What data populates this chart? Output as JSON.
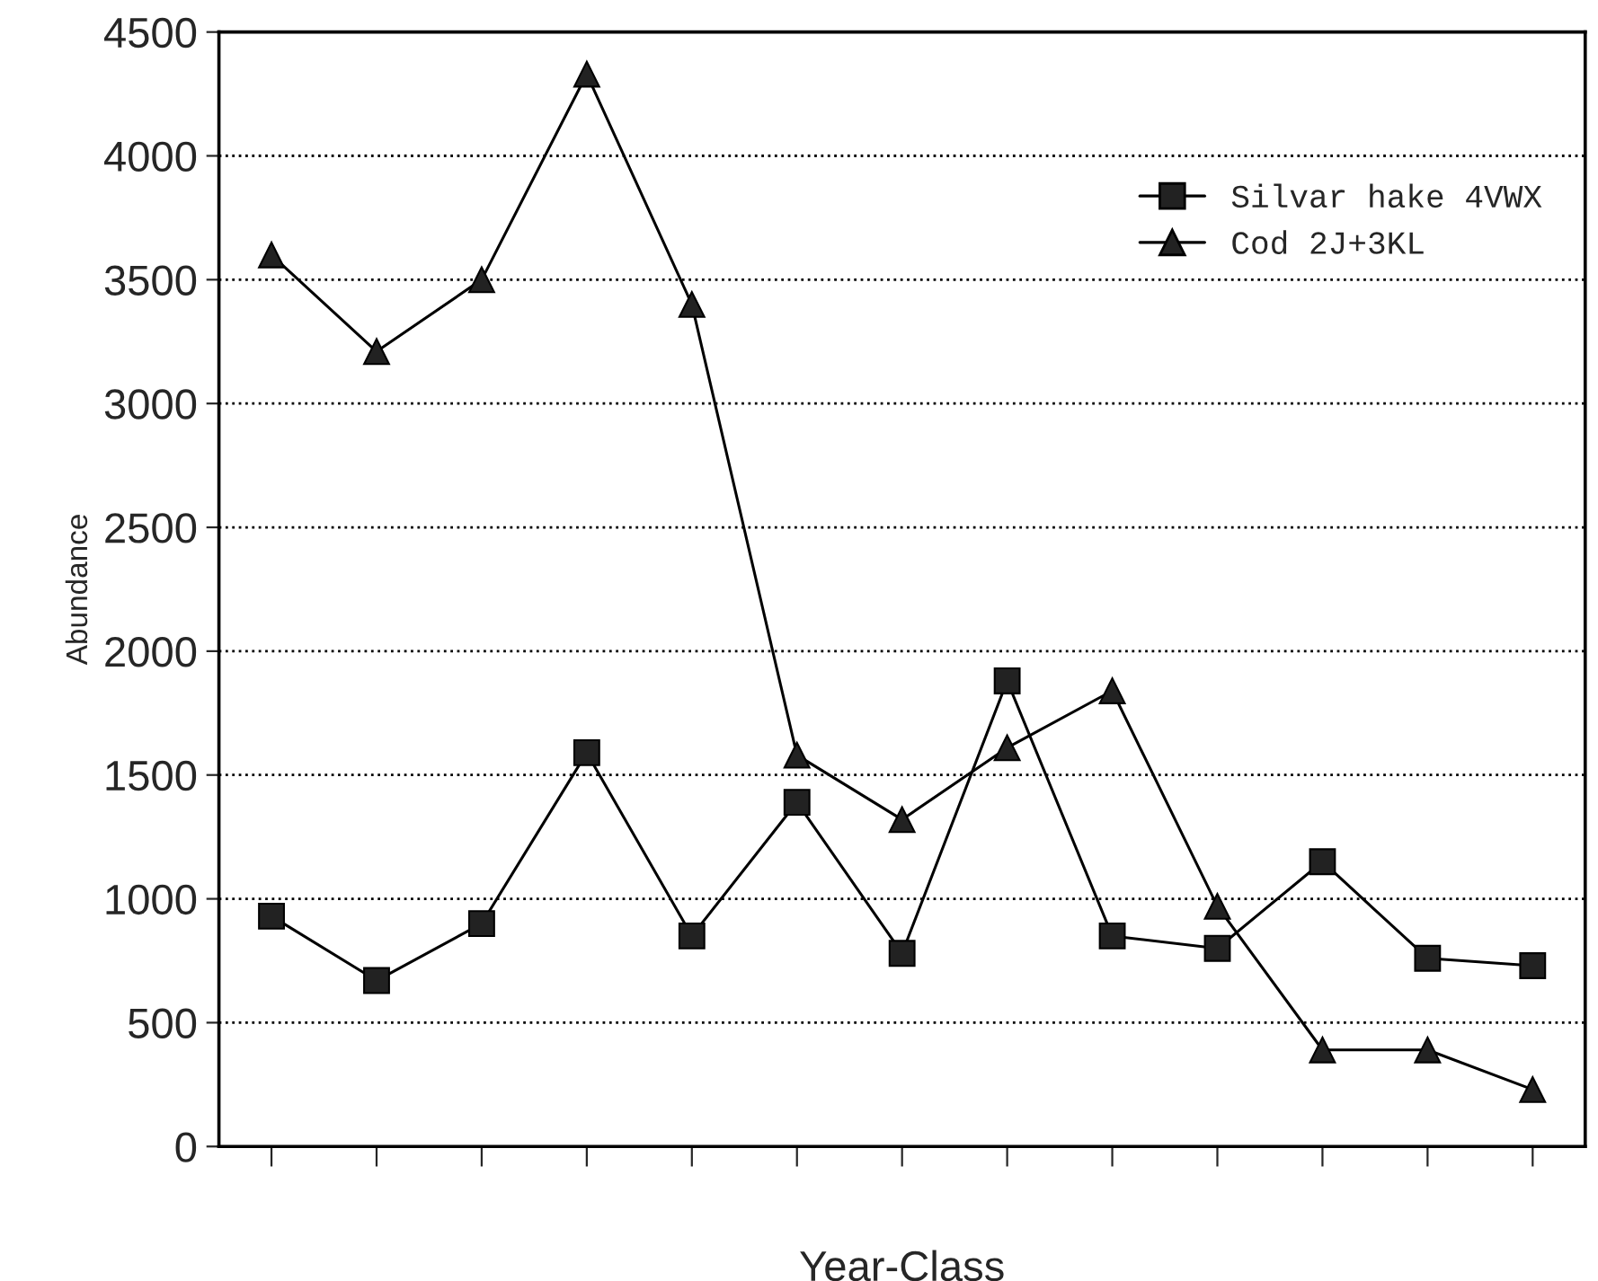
{
  "chart_data": {
    "type": "line",
    "xlabel": "Year-Class",
    "ylabel": "Abundance",
    "categories": [
      null,
      null,
      null,
      null,
      null,
      null,
      null,
      null,
      null,
      null,
      null,
      null,
      null
    ],
    "series": [
      {
        "name": "Silvar hake 4VWX",
        "color": "#000000",
        "marker": "square",
        "values": [
          930,
          670,
          900,
          1590,
          850,
          1390,
          780,
          1880,
          850,
          800,
          1150,
          760,
          730
        ]
      },
      {
        "name": "Cod 2J+3KL",
        "color": "#000000",
        "marker": "triangle",
        "values": [
          3600,
          3210,
          3500,
          4330,
          3400,
          1580,
          1320,
          1610,
          1840,
          970,
          390,
          390,
          230
        ]
      }
    ],
    "ylim": [
      0,
      4500
    ],
    "yticks": [
      0,
      500,
      1000,
      1500,
      2000,
      2500,
      3000,
      3500,
      4000,
      4500
    ],
    "grid": "y",
    "legend": "top right",
    "line_style": "solid"
  }
}
